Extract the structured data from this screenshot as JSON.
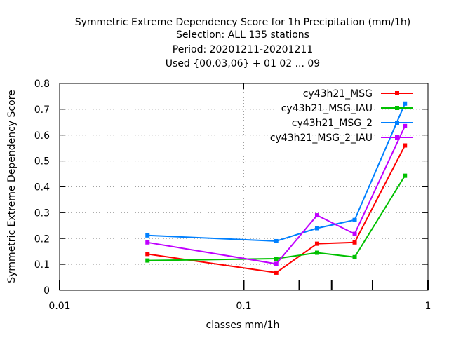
{
  "chart_data": {
    "type": "line",
    "title_lines": [
      "Symmetric Extreme Dependency Score  for 1h Precipitation (mm/1h)",
      "Selection: ALL    135 stations",
      "Period: 20201211-20201211",
      "Used {00,03,06} + 01 02 ... 09"
    ],
    "xlabel": "classes mm/1h",
    "ylabel": "Symmetric Extreme Dependency Score",
    "x_scale": "log",
    "xlim": [
      0.01,
      1
    ],
    "ylim": [
      0,
      0.8
    ],
    "x_tick_labels": [
      "0.01",
      "0.1",
      "1"
    ],
    "x_tick_values": [
      0.01,
      0.1,
      1
    ],
    "x_minor_ticks": [
      0.2,
      0.3,
      0.5
    ],
    "y_tick_labels": [
      "0",
      "0.1",
      "0.2",
      "0.3",
      "0.4",
      "0.5",
      "0.6",
      "0.7",
      "0.8"
    ],
    "y_tick_values": [
      0,
      0.1,
      0.2,
      0.3,
      0.4,
      0.5,
      0.6,
      0.7,
      0.8
    ],
    "grid": "dotted major grid",
    "legend_position": "top-right",
    "series": [
      {
        "name": "cy43h21_MSG",
        "color": "#ff0000",
        "x": [
          0.03,
          0.15,
          0.25,
          0.4,
          0.75
        ],
        "y": [
          0.14,
          0.068,
          0.18,
          0.185,
          0.56
        ]
      },
      {
        "name": "cy43h21_MSG_IAU",
        "color": "#00c000",
        "x": [
          0.03,
          0.15,
          0.25,
          0.4,
          0.75
        ],
        "y": [
          0.115,
          0.122,
          0.145,
          0.128,
          0.443
        ]
      },
      {
        "name": "cy43h21_MSG_2",
        "color": "#0080ff",
        "x": [
          0.03,
          0.15,
          0.25,
          0.4,
          0.75
        ],
        "y": [
          0.212,
          0.19,
          0.24,
          0.272,
          0.722
        ]
      },
      {
        "name": "cy43h21_MSG_2_IAU",
        "color": "#c000ff",
        "x": [
          0.03,
          0.15,
          0.25,
          0.4,
          0.75
        ],
        "y": [
          0.185,
          0.102,
          0.29,
          0.218,
          0.635
        ]
      }
    ]
  }
}
